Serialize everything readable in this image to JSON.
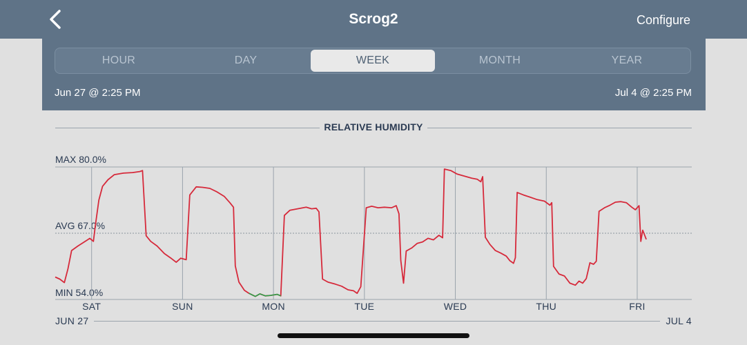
{
  "nav": {
    "title": "Scrog2",
    "configure_label": "Configure"
  },
  "tabs": [
    {
      "label": "HOUR",
      "active": false
    },
    {
      "label": "DAY",
      "active": false
    },
    {
      "label": "WEEK",
      "active": true
    },
    {
      "label": "MONTH",
      "active": false
    },
    {
      "label": "YEAR",
      "active": false
    }
  ],
  "range": {
    "start": "Jun 27 @ 2:25 PM",
    "end": "Jul 4 @ 2:25 PM"
  },
  "colors": {
    "header": "#5f7387",
    "line": "#d6293a",
    "below_min": "#2ea04a",
    "grid": "#9aa3ac"
  },
  "chart_data": {
    "type": "line",
    "title": "RELATIVE HUMIDITY",
    "max_label": "MAX 80.0%",
    "avg_label": "AVG 67.0%",
    "min_label": "MIN 54.0%",
    "ylim": [
      54.0,
      80.0
    ],
    "avg": 67.0,
    "x_labels": [
      "SAT",
      "SUN",
      "MON",
      "TUE",
      "WED",
      "THU",
      "FRI"
    ],
    "date_start": "JUN 27",
    "date_end": "JUL 4",
    "x_range_days": [
      0,
      7
    ],
    "day_tick_positions_days": [
      0.4,
      1.4,
      2.4,
      3.4,
      4.4,
      5.4,
      6.4
    ],
    "series": [
      {
        "values": [
          [
            0.0,
            58.4
          ],
          [
            0.05,
            58.0
          ],
          [
            0.1,
            57.3
          ],
          [
            0.14,
            60.0
          ],
          [
            0.18,
            63.6
          ],
          [
            0.25,
            64.5
          ],
          [
            0.32,
            65.3
          ],
          [
            0.38,
            66.0
          ],
          [
            0.42,
            65.4
          ],
          [
            0.44,
            68.4
          ],
          [
            0.48,
            73.5
          ],
          [
            0.52,
            76.2
          ],
          [
            0.58,
            77.5
          ],
          [
            0.65,
            78.5
          ],
          [
            0.75,
            78.8
          ],
          [
            0.85,
            78.9
          ],
          [
            0.93,
            79.1
          ],
          [
            0.96,
            79.3
          ],
          [
            1.0,
            66.5
          ],
          [
            1.05,
            65.4
          ],
          [
            1.12,
            64.5
          ],
          [
            1.2,
            63.0
          ],
          [
            1.28,
            62.0
          ],
          [
            1.33,
            61.3
          ],
          [
            1.38,
            62.1
          ],
          [
            1.44,
            61.8
          ],
          [
            1.48,
            74.5
          ],
          [
            1.55,
            76.1
          ],
          [
            1.62,
            76.0
          ],
          [
            1.7,
            75.8
          ],
          [
            1.78,
            75.1
          ],
          [
            1.86,
            74.2
          ],
          [
            1.92,
            73.0
          ],
          [
            1.96,
            72.1
          ],
          [
            1.98,
            60.6
          ],
          [
            2.02,
            57.4
          ],
          [
            2.08,
            55.8
          ],
          [
            2.13,
            55.2
          ],
          [
            2.2,
            54.6
          ],
          [
            2.25,
            55.1
          ],
          [
            2.31,
            54.7
          ],
          [
            2.37,
            54.8
          ],
          [
            2.44,
            55.0
          ],
          [
            2.48,
            54.7
          ],
          [
            2.52,
            70.5
          ],
          [
            2.58,
            71.5
          ],
          [
            2.64,
            71.7
          ],
          [
            2.7,
            71.9
          ],
          [
            2.76,
            72.1
          ],
          [
            2.82,
            71.8
          ],
          [
            2.87,
            71.9
          ],
          [
            2.9,
            71.2
          ],
          [
            2.94,
            58.0
          ],
          [
            3.0,
            57.4
          ],
          [
            3.08,
            57.0
          ],
          [
            3.15,
            56.6
          ],
          [
            3.22,
            55.9
          ],
          [
            3.28,
            55.7
          ],
          [
            3.32,
            55.2
          ],
          [
            3.36,
            56.5
          ],
          [
            3.42,
            72.0
          ],
          [
            3.48,
            72.3
          ],
          [
            3.55,
            72.0
          ],
          [
            3.62,
            72.1
          ],
          [
            3.7,
            72.0
          ],
          [
            3.75,
            72.4
          ],
          [
            3.78,
            70.8
          ],
          [
            3.8,
            61.7
          ],
          [
            3.83,
            57.2
          ],
          [
            3.86,
            63.5
          ],
          [
            3.92,
            64.1
          ],
          [
            3.98,
            65.0
          ],
          [
            4.04,
            65.3
          ],
          [
            4.1,
            66.0
          ],
          [
            4.16,
            65.7
          ],
          [
            4.22,
            66.6
          ],
          [
            4.26,
            66.1
          ],
          [
            4.28,
            79.6
          ],
          [
            4.35,
            79.3
          ],
          [
            4.42,
            78.6
          ],
          [
            4.5,
            78.2
          ],
          [
            4.58,
            77.8
          ],
          [
            4.64,
            77.6
          ],
          [
            4.68,
            77.1
          ],
          [
            4.7,
            78.1
          ],
          [
            4.73,
            66.2
          ],
          [
            4.78,
            64.8
          ],
          [
            4.84,
            63.6
          ],
          [
            4.9,
            63.1
          ],
          [
            4.96,
            62.5
          ],
          [
            5.0,
            61.6
          ],
          [
            5.04,
            61.1
          ],
          [
            5.06,
            62.2
          ],
          [
            5.08,
            75.0
          ],
          [
            5.15,
            74.5
          ],
          [
            5.22,
            74.1
          ],
          [
            5.3,
            73.6
          ],
          [
            5.38,
            73.3
          ],
          [
            5.44,
            72.5
          ],
          [
            5.46,
            73.0
          ],
          [
            5.48,
            60.5
          ],
          [
            5.54,
            59.0
          ],
          [
            5.6,
            58.6
          ],
          [
            5.66,
            57.2
          ],
          [
            5.72,
            56.8
          ],
          [
            5.76,
            57.6
          ],
          [
            5.8,
            57.2
          ],
          [
            5.84,
            58.1
          ],
          [
            5.88,
            61.2
          ],
          [
            5.92,
            60.9
          ],
          [
            5.95,
            61.5
          ],
          [
            5.98,
            71.3
          ],
          [
            6.04,
            72.0
          ],
          [
            6.1,
            72.5
          ],
          [
            6.16,
            73.1
          ],
          [
            6.22,
            73.2
          ],
          [
            6.28,
            73.0
          ],
          [
            6.34,
            72.1
          ],
          [
            6.38,
            71.6
          ],
          [
            6.42,
            72.4
          ],
          [
            6.44,
            65.4
          ],
          [
            6.46,
            67.6
          ],
          [
            6.5,
            65.8
          ]
        ]
      }
    ],
    "grid": true
  }
}
